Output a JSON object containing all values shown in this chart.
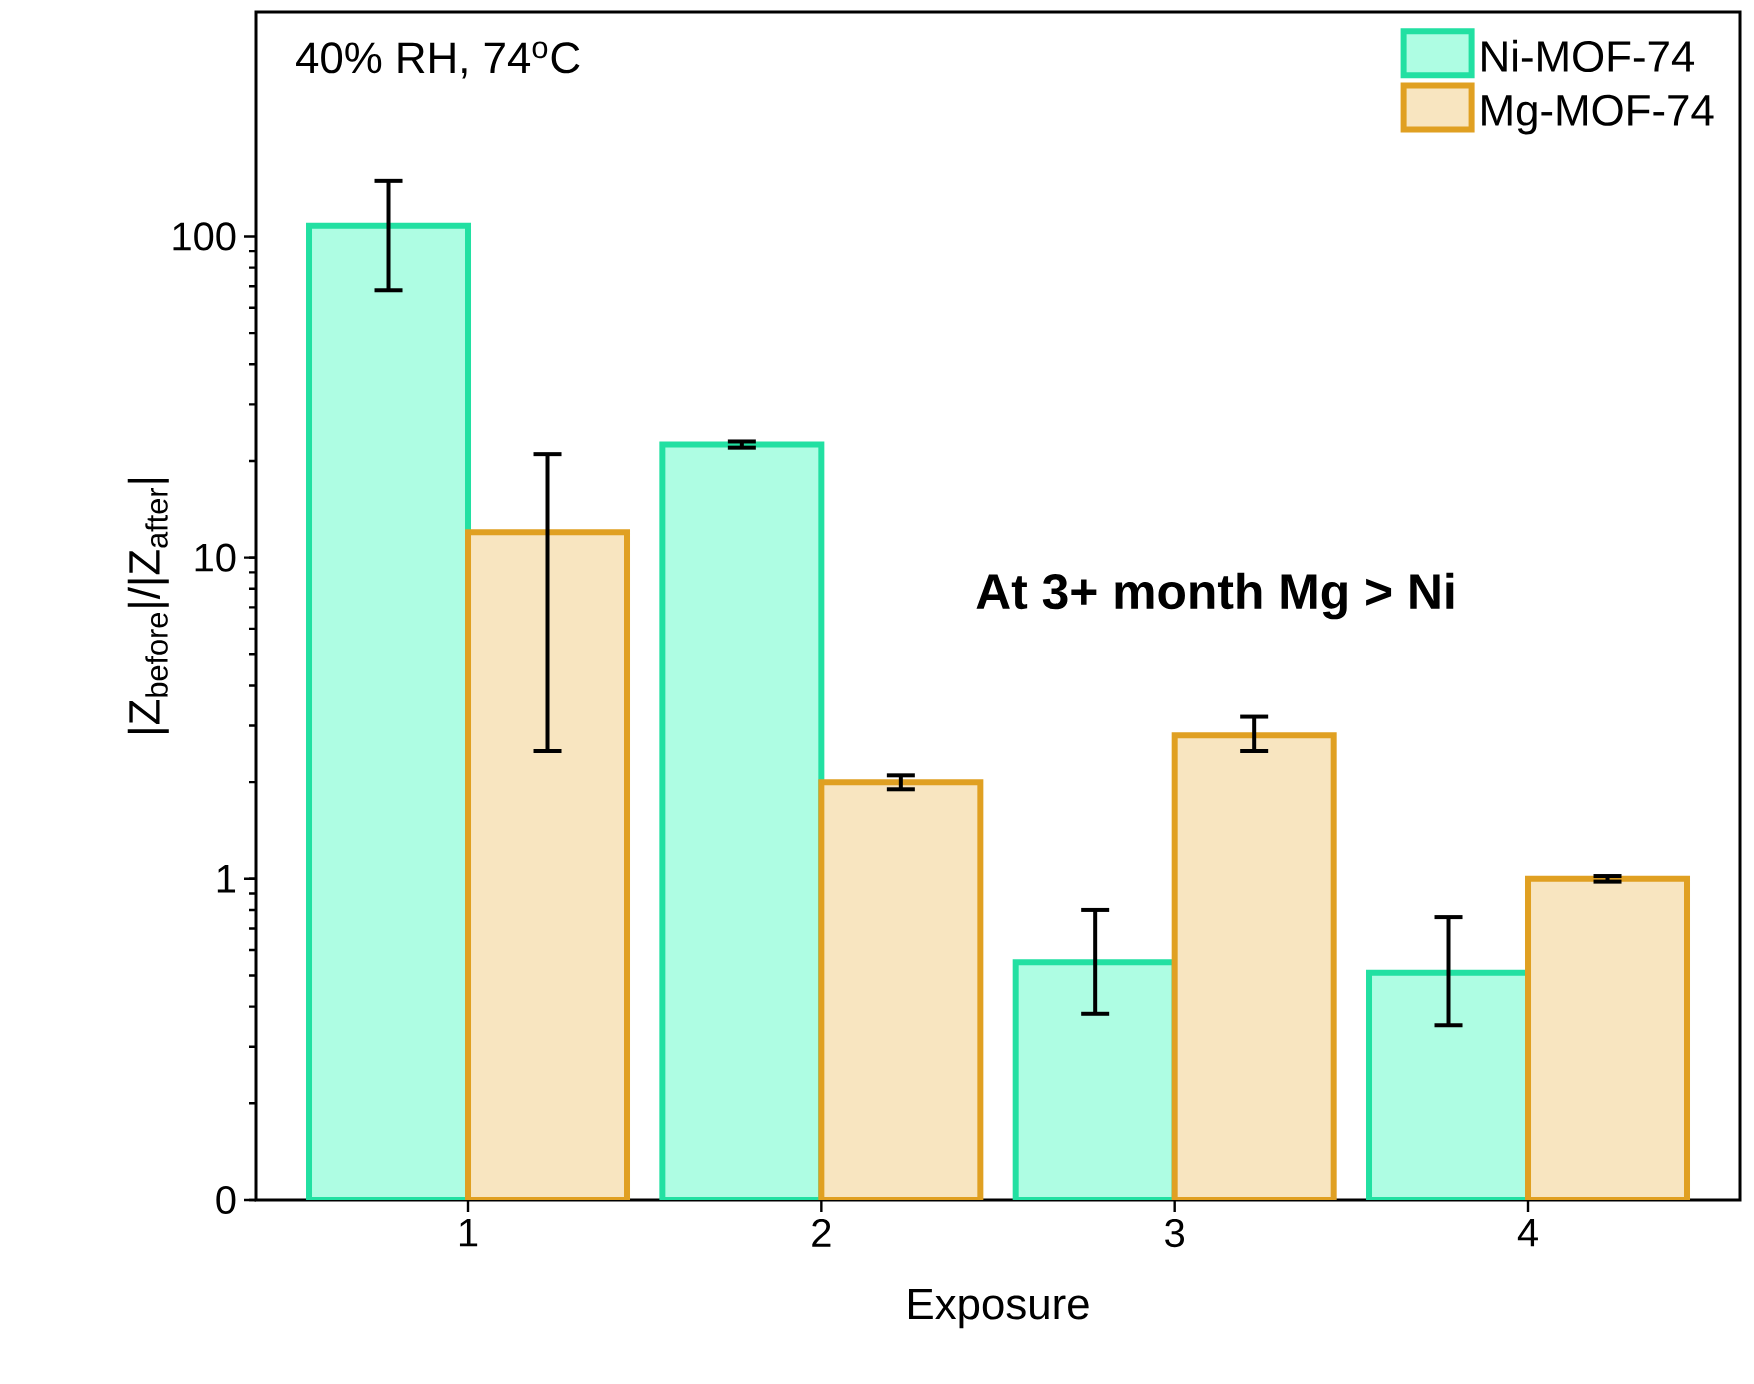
{
  "chart_data": {
    "type": "bar",
    "xlabel": "Exposure",
    "ylabel": "|Z$_{before}$|/|Z$_{after}$|",
    "categories": [
      "1",
      "2",
      "3",
      "4"
    ],
    "series": [
      {
        "name": "Ni-MOF-74",
        "color": "#aefde3",
        "values": [
          108,
          22.5,
          0.55,
          0.51
        ],
        "errors": [
          [
            68,
            149
          ],
          [
            22,
            23
          ],
          [
            0.38,
            0.8
          ],
          [
            0.35,
            0.76
          ]
        ]
      },
      {
        "name": "Mg-MOF-74",
        "color": "#f8e5c0",
        "values": [
          12,
          2.0,
          2.8,
          1.0
        ],
        "errors": [
          [
            2.5,
            21
          ],
          [
            1.9,
            2.1
          ],
          [
            2.5,
            3.2
          ],
          [
            0.98,
            1.02
          ]
        ]
      }
    ],
    "log": "y",
    "ylim": [
      0.1,
      500
    ],
    "yticks": [
      {
        "value": 0.1,
        "label": "0"
      },
      1,
      10,
      100
    ],
    "legend": "top right",
    "annotations": [
      "40% RH, 74$^{o}$C",
      "At 3+ month Mg > Ni"
    ]
  }
}
